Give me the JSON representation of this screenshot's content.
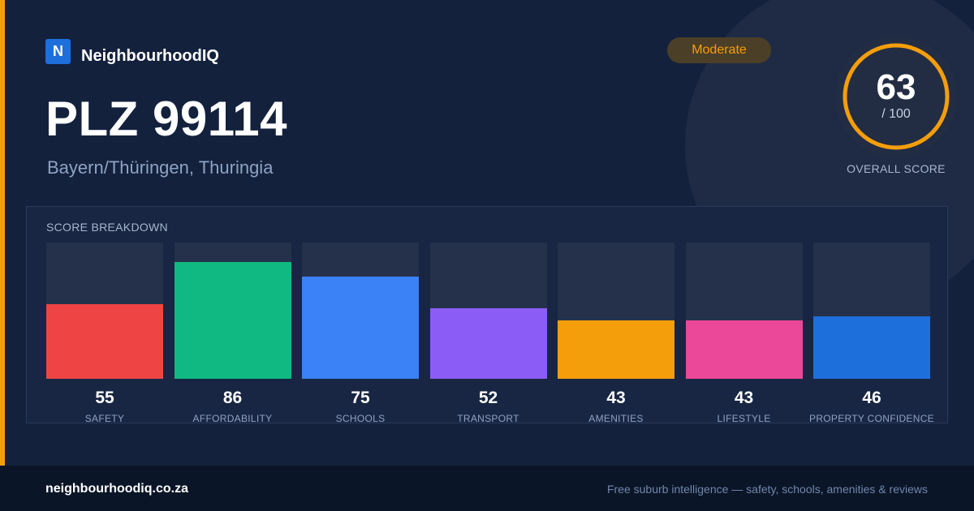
{
  "brand": {
    "logo_letter": "N",
    "name": "NeighbourhoodIQ"
  },
  "location": {
    "title": "PLZ 99114",
    "subtitle": "Bayern/Thüringen, Thuringia"
  },
  "badge": {
    "label": "Moderate",
    "color": "#f59e0b"
  },
  "overall": {
    "score": "63",
    "max": "/ 100",
    "label": "OVERALL SCORE",
    "fraction": 0.63
  },
  "breakdown": {
    "title": "SCORE BREAKDOWN",
    "metrics": [
      {
        "label": "SAFETY",
        "value": "55",
        "color": "#ef4444"
      },
      {
        "label": "AFFORDABILITY",
        "value": "86",
        "color": "#10b981"
      },
      {
        "label": "SCHOOLS",
        "value": "75",
        "color": "#3b82f6"
      },
      {
        "label": "TRANSPORT",
        "value": "52",
        "color": "#8b5cf6"
      },
      {
        "label": "AMENITIES",
        "value": "43",
        "color": "#f59e0b"
      },
      {
        "label": "LIFESTYLE",
        "value": "43",
        "color": "#ec4899"
      },
      {
        "label": "PROPERTY CONFIDENCE",
        "value": "46",
        "color": "#1d6fdc"
      }
    ]
  },
  "footer": {
    "url": "neighbourhoodiq.co.za",
    "tagline": "Free suburb intelligence — safety, schools, amenities & reviews"
  }
}
